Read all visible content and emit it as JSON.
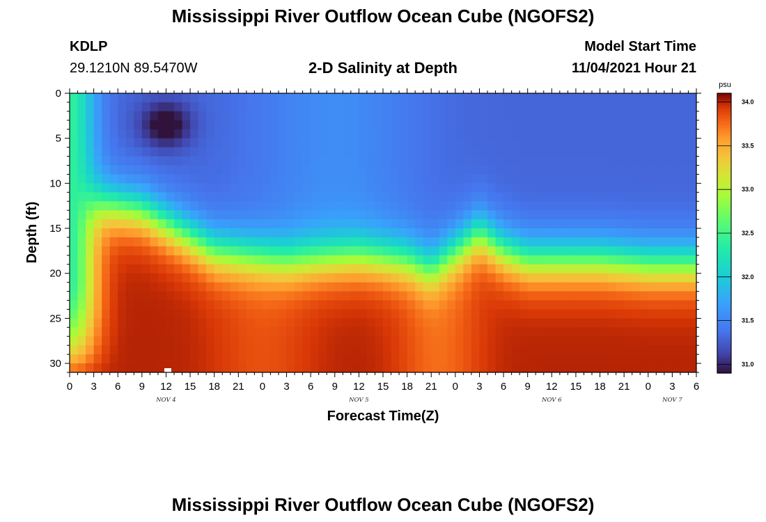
{
  "header": {
    "title": "Mississippi River Outflow Ocean Cube (NGOFS2)",
    "station": "KDLP",
    "coords": "29.1210N  89.5470W",
    "plot_title": "2-D Salinity at Depth",
    "start_label": "Model Start Time",
    "start_value": "11/04/2021 Hour 21",
    "footer_title": "Mississippi River Outflow Ocean Cube (NGOFS2)"
  },
  "chart_data": {
    "type": "heatmap",
    "title": "2-D Salinity at Depth",
    "xlabel": "Forecast Time(Z)",
    "ylabel": "Depth (ft)",
    "x_start_hour": 0,
    "x_end_hour": 78,
    "x_ticks": [
      0,
      3,
      6,
      9,
      12,
      15,
      18,
      21,
      24,
      27,
      30,
      33,
      36,
      39,
      42,
      45,
      48,
      51,
      54,
      57,
      60,
      63,
      66,
      69,
      72,
      75,
      78
    ],
    "x_tick_labels": [
      "0",
      "3",
      "6",
      "9",
      "12",
      "15",
      "18",
      "21",
      "0",
      "3",
      "6",
      "9",
      "12",
      "15",
      "18",
      "21",
      "0",
      "3",
      "6",
      "9",
      "12",
      "15",
      "18",
      "21",
      "0",
      "3",
      "6"
    ],
    "day_labels": [
      {
        "hour": 12,
        "text": "NOV 4"
      },
      {
        "hour": 36,
        "text": "NOV 5"
      },
      {
        "hour": 60,
        "text": "NOV 6"
      },
      {
        "hour": 75,
        "text": "NOV 7"
      }
    ],
    "ylim": [
      0,
      31
    ],
    "y_ticks": [
      0,
      5,
      10,
      15,
      20,
      25,
      30
    ],
    "y_tick_labels": [
      "0",
      "5",
      "10",
      "15",
      "20",
      "25",
      "30"
    ],
    "colorbar": {
      "unit": "psu",
      "min": 30.9,
      "max": 34.1,
      "ticks": [
        31.0,
        31.5,
        32.0,
        32.5,
        33.0,
        33.5,
        34.0
      ],
      "tick_labels": [
        "31.0",
        "31.5",
        "32.0",
        "32.5",
        "33.0",
        "33.5",
        "34.0"
      ]
    },
    "features": {
      "halocline_depth_ft": [
        [
          0,
          9
        ],
        [
          9,
          10.5
        ],
        [
          12,
          12
        ],
        [
          18,
          15
        ],
        [
          27,
          16
        ],
        [
          36,
          15.5
        ],
        [
          42,
          16
        ],
        [
          45,
          17
        ],
        [
          48,
          15
        ],
        [
          51,
          13
        ],
        [
          54,
          15
        ],
        [
          57,
          16
        ],
        [
          60,
          16
        ],
        [
          66,
          16
        ],
        [
          72,
          16.5
        ],
        [
          78,
          16.5
        ]
      ],
      "fresh_core": {
        "hour": 12,
        "depth_ft": 3.5,
        "value": 30.9
      },
      "nearshore_fresh_hours": [
        0,
        6
      ],
      "surface_mixed_value": 31.3,
      "deep_value": 34.0
    }
  }
}
